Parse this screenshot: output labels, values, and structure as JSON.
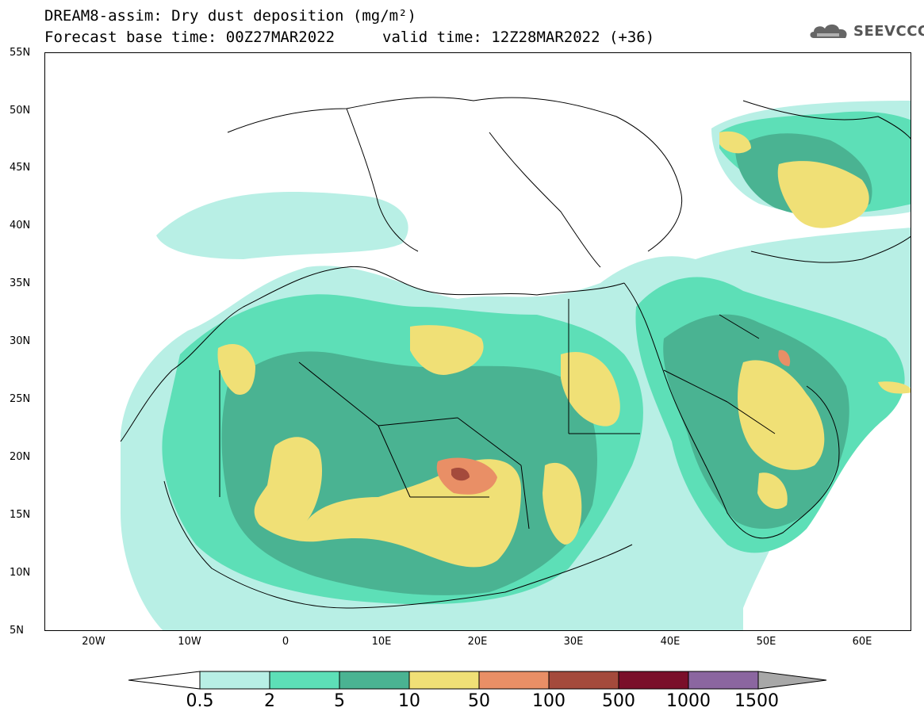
{
  "header": {
    "title_line1": "DREAM8-assim: Dry dust deposition (mg/m²)",
    "title_line2": "Forecast base time: 00Z27MAR2022",
    "valid_time": "valid time: 12Z28MAR2022 (+36)",
    "logo_text": "SEEVCCC"
  },
  "map": {
    "lat_labels": [
      "55N",
      "50N",
      "45N",
      "40N",
      "35N",
      "30N",
      "25N",
      "20N",
      "15N",
      "10N",
      "5N"
    ],
    "lon_labels": [
      "20W",
      "10W",
      "0",
      "10E",
      "20E",
      "30E",
      "40E",
      "50E",
      "60E"
    ]
  },
  "colorbar": {
    "labels": [
      "0.5",
      "2",
      "5",
      "10",
      "50",
      "100",
      "500",
      "1000",
      "1500"
    ],
    "colors": [
      "#b8efe5",
      "#5ddfb7",
      "#4ab392",
      "#f0e076",
      "#e98f66",
      "#a44a3c",
      "#7a0f2a",
      "#8b66a0"
    ],
    "under_color": "#ffffff",
    "over_color": "#a8a8a8"
  },
  "colors": {
    "c1": "#b8efe5",
    "c2": "#5ddfb7",
    "c3": "#4ab392",
    "c4": "#f0e076",
    "c5": "#e98f66",
    "c6": "#a44a3c"
  }
}
